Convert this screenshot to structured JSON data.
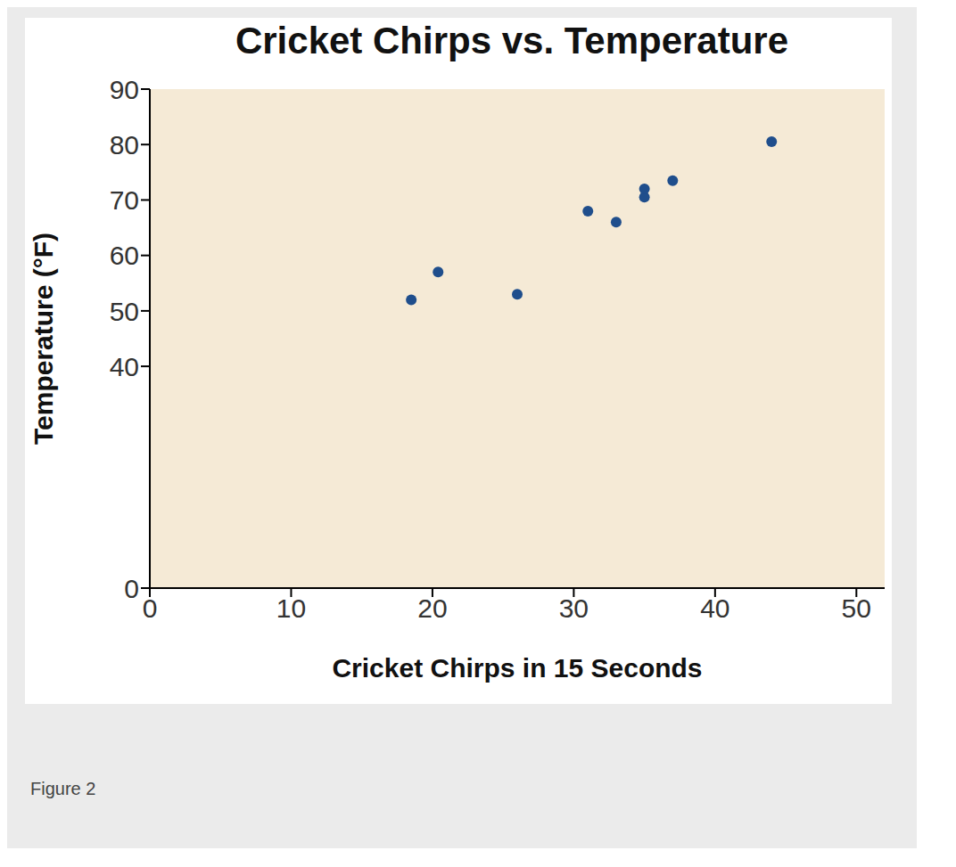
{
  "chart_data": {
    "type": "scatter",
    "title": "Cricket Chirps vs. Temperature",
    "caption": "Figure 2",
    "x_label": "Cricket Chirps in 15 Seconds",
    "y_label": "Temperature (°F)",
    "x": [
      44,
      35,
      20.4,
      33,
      31,
      35,
      18.5,
      37,
      26
    ],
    "values": [
      80.5,
      70.5,
      57,
      66,
      68,
      72,
      52,
      73.5,
      53
    ],
    "color": "#1f4e8c",
    "marker": "circle",
    "xlim": [
      0,
      52
    ],
    "xticks": [
      0,
      10,
      20,
      30,
      40,
      50
    ],
    "ylim": [
      0,
      90
    ],
    "yticks": [
      0,
      40,
      50,
      60,
      70,
      80,
      90
    ],
    "grid": false
  }
}
